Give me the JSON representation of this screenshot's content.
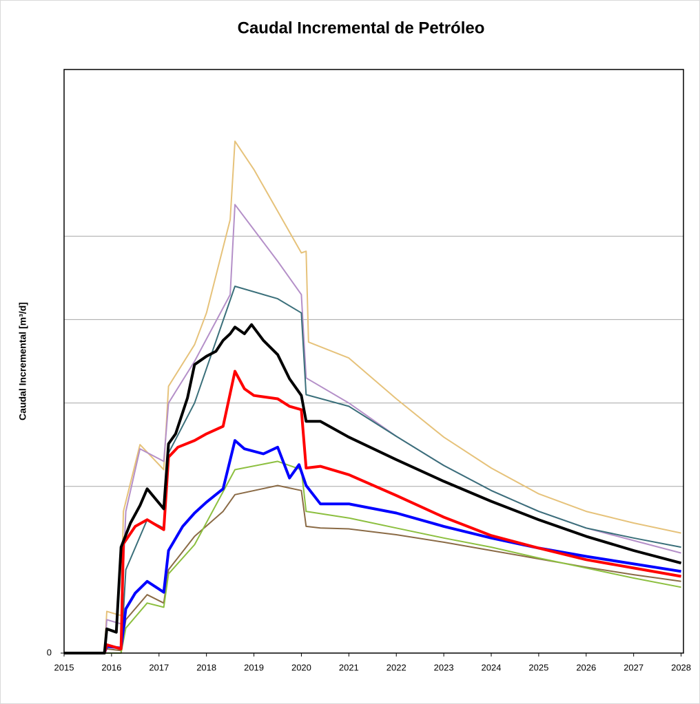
{
  "chart_data": {
    "type": "line",
    "title": "Caudal Incremental de Petróleo",
    "y_label": "Caudal Incremental [m³/d]",
    "xlim": [
      2015,
      2028.05
    ],
    "xticks": [
      2015,
      2016,
      2017,
      2018,
      2019,
      2020,
      2021,
      2022,
      2023,
      2024,
      2025,
      2026,
      2027,
      2028
    ],
    "ylim": [
      0,
      7
    ],
    "yticks": [
      0
    ],
    "ygrid": [
      2,
      3,
      4,
      5
    ],
    "series": [
      {
        "color": "#e6c27a",
        "width": 2,
        "x": [
          2015,
          2015.85,
          2015.9,
          2016.2,
          2016.25,
          2016.6,
          2017.1,
          2017.2,
          2017.75,
          2018.0,
          2018.5,
          2018.6,
          2019.0,
          2019.5,
          2020.0,
          2020.1,
          2020.15,
          2021,
          2022,
          2023,
          2024,
          2025,
          2026,
          2027,
          2028
        ],
        "values": [
          0,
          0,
          0.5,
          0.45,
          1.7,
          2.5,
          2.2,
          3.2,
          3.7,
          4.08,
          5.2,
          6.14,
          5.8,
          5.3,
          4.8,
          4.82,
          3.73,
          3.54,
          3.05,
          2.59,
          2.22,
          1.91,
          1.7,
          1.56,
          1.44
        ]
      },
      {
        "color": "#b48fc8",
        "width": 2,
        "x": [
          2015,
          2015.85,
          2015.9,
          2016.2,
          2016.3,
          2016.6,
          2017.1,
          2017.2,
          2017.75,
          2018.5,
          2018.6,
          2019.5,
          2020.0,
          2020.1,
          2021,
          2022,
          2023,
          2024,
          2025,
          2026,
          2027,
          2028
        ],
        "values": [
          0,
          0,
          0.4,
          0.35,
          1.7,
          2.45,
          2.3,
          3.0,
          3.5,
          4.3,
          5.38,
          4.7,
          4.3,
          3.3,
          3.0,
          2.6,
          2.25,
          1.95,
          1.7,
          1.5,
          1.35,
          1.2
        ]
      },
      {
        "color": "#3a6f7a",
        "width": 2,
        "x": [
          2015,
          2015.9,
          2016.2,
          2016.3,
          2016.75,
          2017.1,
          2017.2,
          2017.75,
          2018.6,
          2019.5,
          2020.0,
          2020.1,
          2021,
          2022,
          2023,
          2024,
          2025,
          2026,
          2027,
          2028
        ],
        "values": [
          0,
          0,
          0,
          1.0,
          1.6,
          1.5,
          2.4,
          3.0,
          4.4,
          4.25,
          4.08,
          3.1,
          2.96,
          2.6,
          2.25,
          1.95,
          1.7,
          1.5,
          1.38,
          1.27
        ]
      },
      {
        "color": "#8a6a45",
        "width": 2,
        "x": [
          2015,
          2015.85,
          2015.9,
          2016.2,
          2016.3,
          2016.75,
          2017.1,
          2017.2,
          2017.75,
          2018.35,
          2018.6,
          2019.5,
          2020.0,
          2020.1,
          2020.4,
          2021,
          2022,
          2023,
          2024,
          2025,
          2026,
          2027,
          2028
        ],
        "values": [
          0,
          0,
          0.05,
          0.03,
          0.4,
          0.7,
          0.6,
          1.0,
          1.4,
          1.7,
          1.9,
          2.01,
          1.95,
          1.52,
          1.5,
          1.49,
          1.42,
          1.33,
          1.23,
          1.13,
          1.03,
          0.94,
          0.86
        ]
      },
      {
        "color": "#8cbf3f",
        "width": 2,
        "x": [
          2015,
          2015.9,
          2016.2,
          2016.3,
          2016.75,
          2017.1,
          2017.2,
          2017.75,
          2018.6,
          2019.5,
          2020.0,
          2020.1,
          2021,
          2022,
          2023,
          2024,
          2025,
          2026,
          2027,
          2028
        ],
        "values": [
          0,
          0,
          0,
          0.3,
          0.6,
          0.55,
          0.95,
          1.3,
          2.2,
          2.3,
          2.2,
          1.7,
          1.62,
          1.5,
          1.38,
          1.27,
          1.14,
          1.02,
          0.9,
          0.79
        ]
      },
      {
        "color": "#0000ff",
        "width": 4,
        "x": [
          2015,
          2015.85,
          2015.9,
          2016.2,
          2016.3,
          2016.5,
          2016.75,
          2017.1,
          2017.2,
          2017.5,
          2017.75,
          2018.0,
          2018.35,
          2018.6,
          2018.8,
          2019.2,
          2019.5,
          2019.75,
          2019.95,
          2020.1,
          2020.4,
          2021,
          2022,
          2023,
          2024,
          2025,
          2026,
          2027,
          2028
        ],
        "values": [
          0,
          0,
          0.08,
          0.06,
          0.53,
          0.72,
          0.86,
          0.73,
          1.23,
          1.52,
          1.68,
          1.81,
          1.97,
          2.55,
          2.45,
          2.39,
          2.47,
          2.1,
          2.26,
          2.01,
          1.79,
          1.79,
          1.68,
          1.52,
          1.38,
          1.26,
          1.16,
          1.07,
          0.98
        ]
      },
      {
        "color": "#ff0000",
        "width": 4,
        "x": [
          2015,
          2015.85,
          2015.9,
          2016.2,
          2016.25,
          2016.5,
          2016.75,
          2017.1,
          2017.2,
          2017.4,
          2017.75,
          2018.0,
          2018.35,
          2018.6,
          2018.8,
          2019.0,
          2019.5,
          2019.75,
          2020.0,
          2020.1,
          2020.4,
          2021,
          2022,
          2023,
          2024,
          2025,
          2026,
          2027,
          2028
        ],
        "values": [
          0,
          0,
          0.1,
          0.05,
          1.31,
          1.52,
          1.6,
          1.48,
          2.35,
          2.47,
          2.55,
          2.63,
          2.72,
          3.38,
          3.17,
          3.09,
          3.05,
          2.96,
          2.92,
          2.22,
          2.24,
          2.14,
          1.89,
          1.63,
          1.41,
          1.26,
          1.12,
          1.02,
          0.92
        ]
      },
      {
        "color": "#000000",
        "width": 4,
        "x": [
          2015,
          2015.85,
          2015.9,
          2016.1,
          2016.2,
          2016.4,
          2016.6,
          2016.75,
          2017.1,
          2017.2,
          2017.35,
          2017.6,
          2017.75,
          2018.0,
          2018.2,
          2018.35,
          2018.5,
          2018.6,
          2018.8,
          2018.95,
          2019.2,
          2019.5,
          2019.75,
          2020.0,
          2020.1,
          2020.4,
          2021,
          2022,
          2023,
          2024,
          2025,
          2026,
          2027,
          2028
        ],
        "values": [
          0,
          0,
          0.29,
          0.25,
          1.27,
          1.56,
          1.77,
          1.97,
          1.73,
          2.51,
          2.63,
          3.06,
          3.46,
          3.56,
          3.62,
          3.75,
          3.83,
          3.91,
          3.83,
          3.94,
          3.75,
          3.58,
          3.29,
          3.09,
          2.78,
          2.78,
          2.59,
          2.32,
          2.06,
          1.82,
          1.6,
          1.4,
          1.23,
          1.08
        ]
      }
    ]
  }
}
